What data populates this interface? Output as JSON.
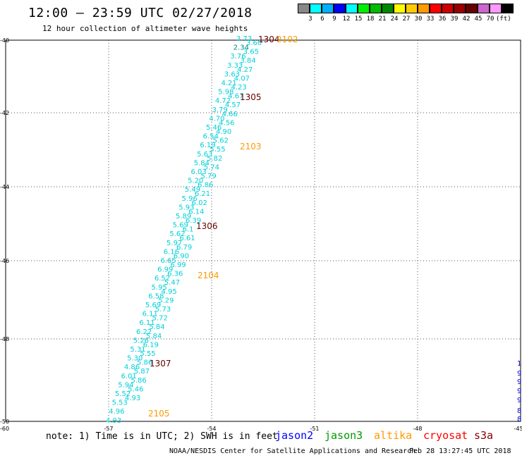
{
  "header": {
    "title": "12:00 — 23:59 UTC 02/27/2018",
    "subtitle": "12 hour collection of altimeter wave heights"
  },
  "scale": {
    "colors": [
      "#888888",
      "#00ffff",
      "#00b0ff",
      "#0000ff",
      "#00ffff",
      "#00ee00",
      "#00bb00",
      "#008800",
      "#ffff00",
      "#ffcc00",
      "#ff9900",
      "#ff0000",
      "#cc0000",
      "#990000",
      "#660000",
      "#cc66cc",
      "#ff99ff",
      "#000000"
    ],
    "labels": [
      "3",
      "6",
      "9",
      "12",
      "15",
      "18",
      "21",
      "24",
      "27",
      "30",
      "33",
      "36",
      "39",
      "42",
      "45",
      "70",
      "(ft)"
    ]
  },
  "axes": {
    "y_labels": [
      "-40",
      "-42",
      "-44",
      "-46",
      "-48",
      "-50"
    ],
    "x_labels": [
      "-57",
      "-54",
      "-51",
      "-48",
      "-45"
    ],
    "corner_label": "-60"
  },
  "map_data": {
    "track_points": [
      [
        "3.73",
        "3.60"
      ],
      [
        "2.34",
        "3.65"
      ],
      [
        "3.76",
        "3.84"
      ],
      [
        "3.33",
        "4.27"
      ],
      [
        "3.63",
        "4.07"
      ],
      [
        "4.21",
        "4.23"
      ],
      [
        "5.98",
        "4.67"
      ],
      [
        "4.72",
        "4.57"
      ],
      [
        "3.79",
        "4.66"
      ],
      [
        "4.70",
        "4.56"
      ],
      [
        "5.46",
        "4.90"
      ],
      [
        "6.54",
        "5.62"
      ],
      [
        "6.19",
        "5.55"
      ],
      [
        "5.63",
        "5.82"
      ],
      [
        "5.84",
        "5.74"
      ],
      [
        "6.03",
        "5.79"
      ],
      [
        "5.20",
        "6.86"
      ],
      [
        "5.49",
        "6.21"
      ],
      [
        "5.96",
        "6.02"
      ],
      [
        "5.93",
        "6.14"
      ],
      [
        "5.89",
        "6.39"
      ],
      [
        "5.69",
        "6.1"
      ],
      [
        "5.62",
        "6.61"
      ],
      [
        "5.97",
        "6.79"
      ],
      [
        "6.16",
        "6.90"
      ],
      [
        "6.65",
        "6.99"
      ],
      [
        "6.99",
        "6.36"
      ],
      [
        "6.52",
        "5.47"
      ],
      [
        "5.95",
        "4.95"
      ],
      [
        "6.58",
        "5.29"
      ],
      [
        "5.69",
        "5.73"
      ],
      [
        "6.11",
        "5.72"
      ],
      [
        "6.11",
        "5.84"
      ],
      [
        "6.22",
        "5.84"
      ],
      [
        "5.26",
        "6.19"
      ],
      [
        "5.31",
        "5.55"
      ],
      [
        "5.30",
        "5.86"
      ],
      [
        "4.86",
        "5.87"
      ],
      [
        "6.01",
        "5.86"
      ],
      [
        "5.94",
        "5.46"
      ],
      [
        "5.52",
        "4.93"
      ],
      [
        "5.53",
        ""
      ],
      [
        "4.96",
        ""
      ],
      [
        "4.93",
        ""
      ]
    ],
    "orbit_labels": [
      {
        "text": "1304",
        "color": "#660000"
      },
      {
        "text": "2102",
        "color": "#ff9900"
      },
      {
        "text": "1305",
        "color": "#660000"
      },
      {
        "text": "2103",
        "color": "#ff9900"
      },
      {
        "text": "1306",
        "color": "#660000"
      },
      {
        "text": "2104",
        "color": "#ff9900"
      },
      {
        "text": "1307",
        "color": "#660000"
      },
      {
        "text": "2105",
        "color": "#ff9900"
      }
    ],
    "edge_labels": [
      {
        "text": "1",
        "color": "#0000cc"
      },
      {
        "text": "9",
        "color": "#0000cc"
      },
      {
        "text": "9",
        "color": "#0000cc"
      },
      {
        "text": "9",
        "color": "#0000cc"
      },
      {
        "text": "9.",
        "color": "#0000cc"
      },
      {
        "text": "8.",
        "color": "#0000cc"
      },
      {
        "text": "8.0",
        "color": "#0000cc"
      }
    ]
  },
  "footer": {
    "note": "note: 1) Time is in UTC; 2) SWH is in feet",
    "legend": [
      {
        "name": "jason2",
        "color": "#0000ff"
      },
      {
        "name": "jason3",
        "color": "#009900"
      },
      {
        "name": "altika",
        "color": "#ff9900"
      },
      {
        "name": "cryosat",
        "color": "#ff0000"
      },
      {
        "name": "s3a",
        "color": "#880000"
      }
    ],
    "credit": "NOAA/NESDIS Center for Satellite Applications and Research",
    "timestamp": "Feb 28 13:27:45 UTC 2018"
  }
}
